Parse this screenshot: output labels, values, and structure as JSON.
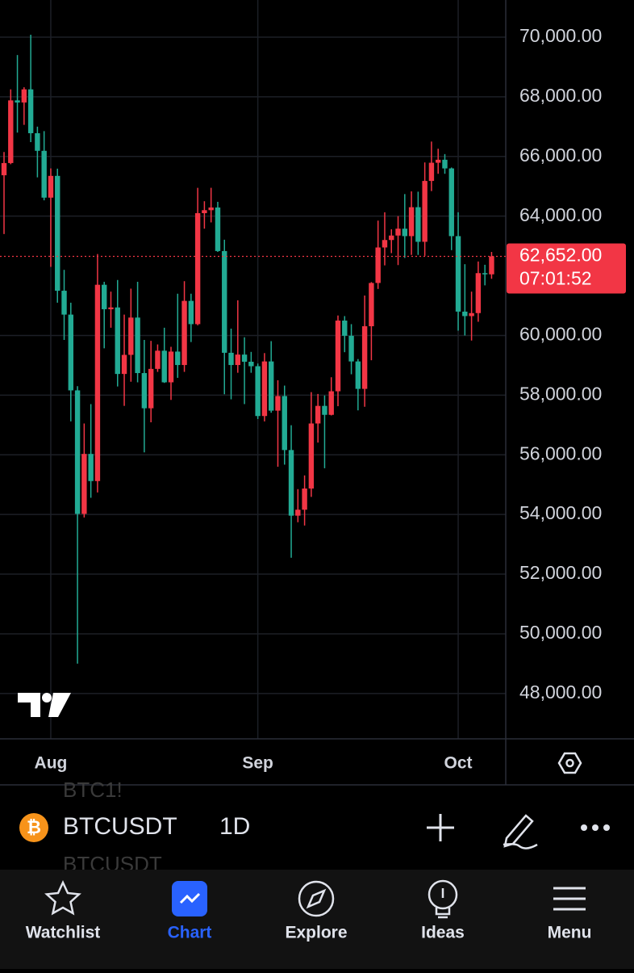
{
  "chart_data": {
    "type": "candlestick",
    "categories": [
      null,
      null,
      null,
      null,
      null,
      null,
      null,
      "Aug",
      null,
      null,
      null,
      null,
      null,
      null,
      null,
      null,
      null,
      null,
      null,
      null,
      null,
      null,
      null,
      null,
      null,
      null,
      null,
      null,
      null,
      null,
      null,
      null,
      null,
      null,
      null,
      null,
      null,
      null,
      "Sep",
      null,
      null,
      null,
      null,
      null,
      null,
      null,
      null,
      null,
      null,
      null,
      null,
      null,
      null,
      null,
      null,
      null,
      null,
      null,
      null,
      null,
      null,
      null,
      null,
      null,
      null,
      null,
      null,
      null,
      "Oct",
      null,
      null,
      null,
      null,
      null
    ],
    "open": [
      65370,
      65780,
      67880,
      67810,
      68250,
      66780,
      66190,
      64620,
      65350,
      61500,
      60700,
      58160,
      54020,
      56030,
      55120,
      61700,
      60880,
      60940,
      58710,
      59350,
      60600,
      58740,
      57560,
      58880,
      59490,
      58430,
      59460,
      59010,
      61160,
      60380,
      64100,
      64200,
      64290,
      62830,
      59420,
      59010,
      59360,
      59120,
      58970,
      57300,
      59130,
      57480,
      57970,
      56160,
      53960,
      54160,
      54870,
      57050,
      57640,
      57340,
      58130,
      60500,
      59990,
      59130,
      58210,
      60310,
      61760,
      62950,
      63200,
      63350,
      63580,
      63330,
      64300,
      63140,
      65180,
      65790,
      65890,
      65600,
      63330,
      60800,
      60650,
      60750,
      62090,
      62050
    ],
    "high": [
      66150,
      68250,
      69400,
      68320,
      70080,
      67000,
      66850,
      65600,
      65590,
      62200,
      61100,
      58300,
      57050,
      57700,
      62730,
      61800,
      61470,
      61860,
      60700,
      61570,
      61800,
      59850,
      59820,
      59700,
      60260,
      59620,
      61400,
      61820,
      61400,
      64950,
      64500,
      64950,
      64480,
      63210,
      60230,
      61180,
      59940,
      59450,
      59060,
      59410,
      59810,
      58500,
      58320,
      56990,
      54850,
      55310,
      58100,
      58040,
      57990,
      58600,
      60670,
      60650,
      60380,
      59210,
      61340,
      61790,
      63850,
      64130,
      63560,
      64000,
      64740,
      64830,
      64820,
      65800,
      66500,
      66260,
      66080,
      65630,
      64130,
      62390,
      61470,
      62480,
      62370,
      62800
    ],
    "low": [
      63400,
      65740,
      66800,
      67060,
      66480,
      65300,
      64530,
      62300,
      61100,
      59850,
      57120,
      49000,
      53900,
      54560,
      54740,
      59570,
      60260,
      58290,
      57640,
      58450,
      58430,
      56080,
      57090,
      58780,
      58410,
      57840,
      58580,
      58780,
      59780,
      60340,
      63580,
      63790,
      62800,
      58030,
      57860,
      58750,
      57700,
      58750,
      57200,
      57120,
      57410,
      55600,
      55670,
      52550,
      53740,
      53630,
      54590,
      56410,
      55550,
      57320,
      57630,
      59440,
      58700,
      57490,
      57610,
      59170,
      61560,
      62350,
      62760,
      62360,
      62600,
      62700,
      62700,
      62670,
      64840,
      65420,
      65420,
      62860,
      60160,
      60000,
      59830,
      60460,
      61680,
      61900
    ],
    "close": [
      65780,
      67880,
      67810,
      68250,
      66780,
      66190,
      64620,
      65350,
      61500,
      60700,
      58160,
      54020,
      56030,
      55120,
      61700,
      60880,
      60940,
      58710,
      59350,
      60600,
      58740,
      57560,
      58880,
      59490,
      58430,
      59460,
      59010,
      61160,
      60380,
      64100,
      64200,
      64290,
      62830,
      59420,
      59010,
      59360,
      59120,
      58970,
      57300,
      59130,
      57480,
      57970,
      56160,
      53960,
      54160,
      54870,
      57050,
      57640,
      57340,
      58130,
      60500,
      59990,
      59130,
      58210,
      60310,
      61760,
      62950,
      63200,
      63350,
      63580,
      63330,
      64300,
      63140,
      65180,
      65790,
      65890,
      65600,
      63330,
      60800,
      60650,
      60750,
      62090,
      62050,
      62652
    ],
    "up_color": "#f23645",
    "down_color": "#22ab94",
    "ylim": [
      46480,
      71245
    ],
    "yticks": [
      {
        "value": 48000,
        "label": "48,000.00"
      },
      {
        "value": 50000,
        "label": "50,000.00"
      },
      {
        "value": 52000,
        "label": "52,000.00"
      },
      {
        "value": 54000,
        "label": "54,000.00"
      },
      {
        "value": 56000,
        "label": "56,000.00"
      },
      {
        "value": 58000,
        "label": "58,000.00"
      },
      {
        "value": 60000,
        "label": "60,000.00"
      },
      {
        "value": 64000,
        "label": "64,000.00"
      },
      {
        "value": 66000,
        "label": "66,000.00"
      },
      {
        "value": 68000,
        "label": "68,000.00"
      },
      {
        "value": 70000,
        "label": "70,000.00"
      }
    ],
    "grid": true,
    "last_price": {
      "value": 62652,
      "label": "62,652.00"
    },
    "countdown": "07:01:52"
  },
  "symbol_bar": {
    "ghost_above": "BTC1!",
    "symbol": "BTCUSDT",
    "interval": "1D",
    "ghost_below": "BTCUSDT"
  },
  "nav": {
    "items": [
      "Watchlist",
      "Chart",
      "Explore",
      "Ideas",
      "Menu"
    ],
    "active": 1
  }
}
